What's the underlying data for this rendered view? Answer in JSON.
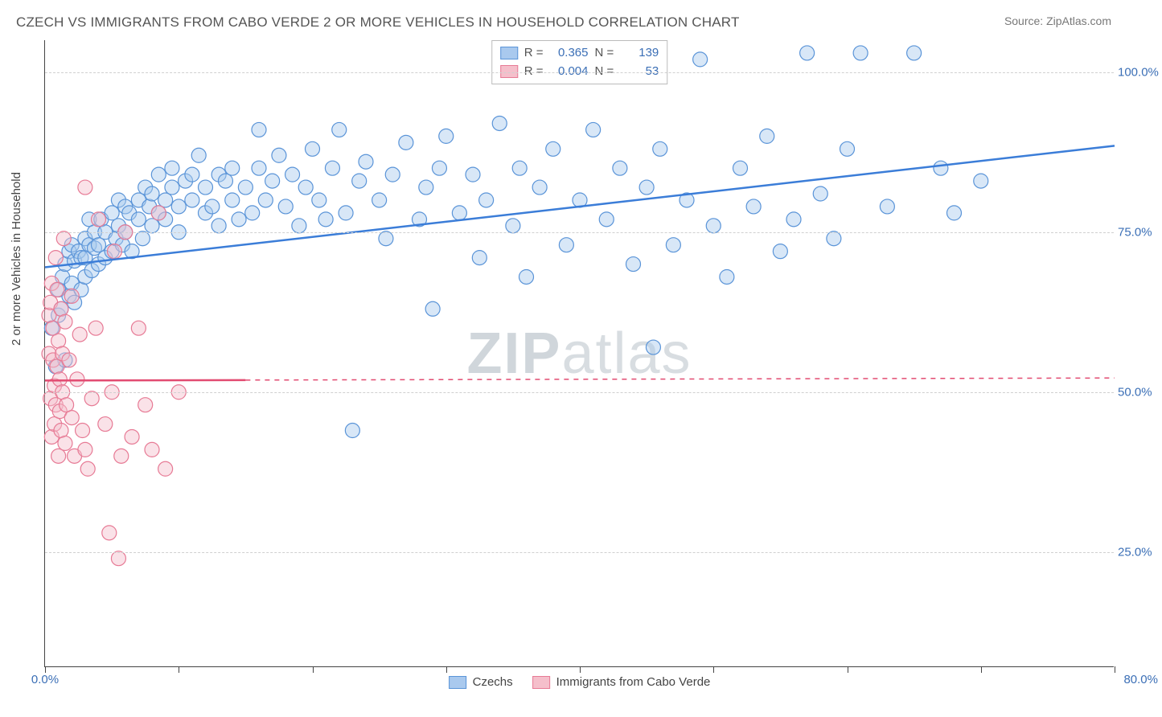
{
  "title": "CZECH VS IMMIGRANTS FROM CABO VERDE 2 OR MORE VEHICLES IN HOUSEHOLD CORRELATION CHART",
  "source": "Source: ZipAtlas.com",
  "ylabel": "2 or more Vehicles in Household",
  "watermark_a": "ZIP",
  "watermark_b": "atlas",
  "chart": {
    "type": "scatter",
    "xlim": [
      0,
      80
    ],
    "ylim": [
      7,
      105
    ],
    "x_ticks": [
      0,
      10,
      20,
      30,
      40,
      50,
      60,
      70,
      80
    ],
    "x_tick_labels": {
      "0": "0.0%",
      "80": "80.0%"
    },
    "y_ticks": [
      25,
      50,
      75,
      100
    ],
    "y_tick_labels": {
      "25": "25.0%",
      "50": "50.0%",
      "75": "75.0%",
      "100": "100.0%"
    },
    "grid_color": "#d0d0d0",
    "background_color": "#ffffff",
    "marker_radius": 9,
    "marker_opacity": 0.45,
    "line_width": 2.5,
    "series": [
      {
        "name": "Czechs",
        "color_fill": "#a9c9ee",
        "color_stroke": "#5a94d8",
        "line_color": "#3b7dd8",
        "R": "0.365",
        "N": "139",
        "trend": {
          "x1": 0,
          "y1": 69.5,
          "x2": 80,
          "y2": 88.5,
          "dash": "none",
          "x_solid_end": 80
        },
        "points": [
          [
            0.5,
            60
          ],
          [
            0.8,
            54
          ],
          [
            1,
            62
          ],
          [
            1,
            66
          ],
          [
            1.2,
            63
          ],
          [
            1.3,
            68
          ],
          [
            1.5,
            70
          ],
          [
            1.5,
            55
          ],
          [
            1.8,
            65
          ],
          [
            1.8,
            72
          ],
          [
            2,
            67
          ],
          [
            2,
            73
          ],
          [
            2.2,
            70.5
          ],
          [
            2.2,
            64
          ],
          [
            2.5,
            72
          ],
          [
            2.7,
            71
          ],
          [
            2.7,
            66
          ],
          [
            3,
            71
          ],
          [
            3,
            74
          ],
          [
            3,
            68
          ],
          [
            3.3,
            73
          ],
          [
            3.3,
            77
          ],
          [
            3.5,
            69
          ],
          [
            3.7,
            72.5
          ],
          [
            3.7,
            75
          ],
          [
            4,
            73
          ],
          [
            4,
            70
          ],
          [
            4.2,
            77
          ],
          [
            4.5,
            75
          ],
          [
            4.5,
            71
          ],
          [
            5,
            72
          ],
          [
            5,
            78
          ],
          [
            5.3,
            74
          ],
          [
            5.5,
            76
          ],
          [
            5.5,
            80
          ],
          [
            5.8,
            73
          ],
          [
            6,
            79
          ],
          [
            6,
            75
          ],
          [
            6.3,
            78
          ],
          [
            6.5,
            72
          ],
          [
            7,
            80
          ],
          [
            7,
            77
          ],
          [
            7.3,
            74
          ],
          [
            7.5,
            82
          ],
          [
            7.8,
            79
          ],
          [
            8,
            76
          ],
          [
            8,
            81
          ],
          [
            8.5,
            78
          ],
          [
            8.5,
            84
          ],
          [
            9,
            80
          ],
          [
            9,
            77
          ],
          [
            9.5,
            82
          ],
          [
            9.5,
            85
          ],
          [
            10,
            79
          ],
          [
            10,
            75
          ],
          [
            10.5,
            83
          ],
          [
            11,
            84
          ],
          [
            11,
            80
          ],
          [
            11.5,
            87
          ],
          [
            12,
            78
          ],
          [
            12,
            82
          ],
          [
            12.5,
            79
          ],
          [
            13,
            84
          ],
          [
            13,
            76
          ],
          [
            13.5,
            83
          ],
          [
            14,
            85
          ],
          [
            14,
            80
          ],
          [
            14.5,
            77
          ],
          [
            15,
            82
          ],
          [
            15.5,
            78
          ],
          [
            16,
            85
          ],
          [
            16,
            91
          ],
          [
            16.5,
            80
          ],
          [
            17,
            83
          ],
          [
            17.5,
            87
          ],
          [
            18,
            79
          ],
          [
            18.5,
            84
          ],
          [
            19,
            76
          ],
          [
            19.5,
            82
          ],
          [
            20,
            88
          ],
          [
            20.5,
            80
          ],
          [
            21,
            77
          ],
          [
            21.5,
            85
          ],
          [
            22,
            91
          ],
          [
            22.5,
            78
          ],
          [
            23,
            44
          ],
          [
            23.5,
            83
          ],
          [
            24,
            86
          ],
          [
            25,
            80
          ],
          [
            25.5,
            74
          ],
          [
            26,
            84
          ],
          [
            27,
            89
          ],
          [
            28,
            77
          ],
          [
            28.5,
            82
          ],
          [
            29,
            63
          ],
          [
            29.5,
            85
          ],
          [
            30,
            90
          ],
          [
            31,
            78
          ],
          [
            32,
            84
          ],
          [
            32.5,
            71
          ],
          [
            33,
            80
          ],
          [
            34,
            92
          ],
          [
            35,
            76
          ],
          [
            35.5,
            85
          ],
          [
            36,
            68
          ],
          [
            37,
            82
          ],
          [
            38,
            88
          ],
          [
            39,
            73
          ],
          [
            40,
            80
          ],
          [
            41,
            91
          ],
          [
            42,
            77
          ],
          [
            43,
            85
          ],
          [
            44,
            70
          ],
          [
            45,
            82
          ],
          [
            45.5,
            57
          ],
          [
            46,
            88
          ],
          [
            47,
            73
          ],
          [
            48,
            80
          ],
          [
            49,
            102
          ],
          [
            50,
            76
          ],
          [
            51,
            68
          ],
          [
            52,
            85
          ],
          [
            53,
            79
          ],
          [
            54,
            90
          ],
          [
            55,
            72
          ],
          [
            56,
            77
          ],
          [
            57,
            103
          ],
          [
            58,
            81
          ],
          [
            59,
            74
          ],
          [
            60,
            88
          ],
          [
            61,
            103
          ],
          [
            63,
            79
          ],
          [
            65,
            103
          ],
          [
            67,
            85
          ],
          [
            68,
            78
          ],
          [
            70,
            83
          ]
        ]
      },
      {
        "name": "Immigrants from Cabo Verde",
        "color_fill": "#f5bfcb",
        "color_stroke": "#e77a95",
        "line_color": "#e24b71",
        "R": "0.004",
        "N": "53",
        "trend": {
          "x1": 0,
          "y1": 51.8,
          "x2": 80,
          "y2": 52.2,
          "dash": "5,5",
          "x_solid_end": 15
        },
        "points": [
          [
            0.3,
            62
          ],
          [
            0.3,
            56
          ],
          [
            0.4,
            64
          ],
          [
            0.4,
            49
          ],
          [
            0.5,
            67
          ],
          [
            0.5,
            43
          ],
          [
            0.6,
            55
          ],
          [
            0.6,
            60
          ],
          [
            0.7,
            51
          ],
          [
            0.7,
            45
          ],
          [
            0.8,
            71
          ],
          [
            0.8,
            48
          ],
          [
            0.9,
            54
          ],
          [
            0.9,
            66
          ],
          [
            1,
            58
          ],
          [
            1,
            40
          ],
          [
            1.1,
            52
          ],
          [
            1.1,
            47
          ],
          [
            1.2,
            63
          ],
          [
            1.2,
            44
          ],
          [
            1.3,
            56
          ],
          [
            1.3,
            50
          ],
          [
            1.4,
            74
          ],
          [
            1.5,
            61
          ],
          [
            1.5,
            42
          ],
          [
            1.6,
            48
          ],
          [
            1.8,
            55
          ],
          [
            2,
            46
          ],
          [
            2,
            65
          ],
          [
            2.2,
            40
          ],
          [
            2.4,
            52
          ],
          [
            2.6,
            59
          ],
          [
            2.8,
            44
          ],
          [
            3,
            82
          ],
          [
            3,
            41
          ],
          [
            3.2,
            38
          ],
          [
            3.5,
            49
          ],
          [
            3.8,
            60
          ],
          [
            4,
            77
          ],
          [
            4.5,
            45
          ],
          [
            4.8,
            28
          ],
          [
            5,
            50
          ],
          [
            5.2,
            72
          ],
          [
            5.5,
            24
          ],
          [
            5.7,
            40
          ],
          [
            6,
            75
          ],
          [
            6.5,
            43
          ],
          [
            7,
            60
          ],
          [
            7.5,
            48
          ],
          [
            8,
            41
          ],
          [
            8.5,
            78
          ],
          [
            9,
            38
          ],
          [
            10,
            50
          ]
        ]
      }
    ]
  },
  "legend_bottom": [
    {
      "label": "Czechs",
      "fill": "#a9c9ee",
      "stroke": "#5a94d8"
    },
    {
      "label": "Immigrants from Cabo Verde",
      "fill": "#f5bfcb",
      "stroke": "#e77a95"
    }
  ]
}
